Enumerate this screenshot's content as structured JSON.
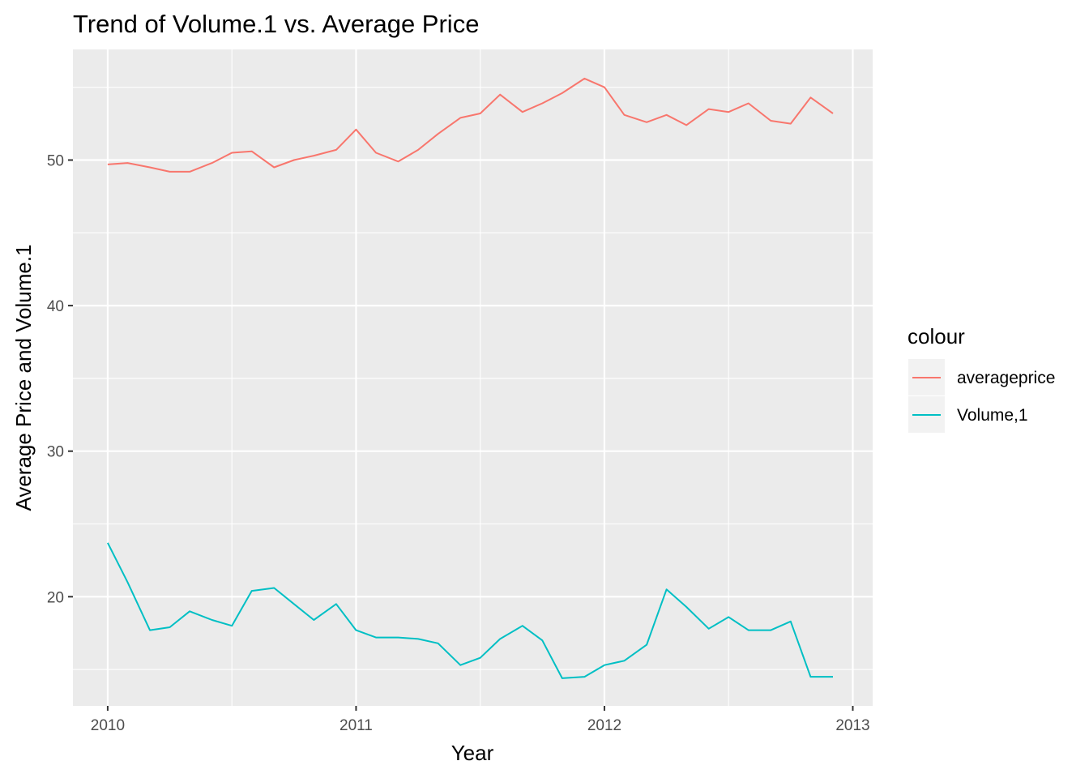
{
  "chart_data": {
    "type": "line",
    "title": "Trend of Volume.1 vs. Average Price",
    "xlabel": "Year",
    "ylabel": "Average Price and Volume.1",
    "xlim": [
      2009.86,
      2013.08
    ],
    "ylim": [
      12.5,
      57.6
    ],
    "x_ticks": [
      2010,
      2011,
      2012,
      2013
    ],
    "x_tick_labels": [
      "2010",
      "2011",
      "2012",
      "2013"
    ],
    "y_ticks": [
      20,
      30,
      40,
      50
    ],
    "y_tick_labels": [
      "20",
      "30",
      "40",
      "50"
    ],
    "grid": true,
    "legend": {
      "title": "colour",
      "position": "right"
    },
    "x": [
      2010.0,
      2010.08,
      2010.17,
      2010.25,
      2010.33,
      2010.42,
      2010.5,
      2010.58,
      2010.67,
      2010.75,
      2010.83,
      2010.92,
      2011.0,
      2011.08,
      2011.17,
      2011.25,
      2011.33,
      2011.42,
      2011.5,
      2011.58,
      2011.67,
      2011.75,
      2011.83,
      2011.92,
      2012.0,
      2012.08,
      2012.17,
      2012.25,
      2012.33,
      2012.42,
      2012.5,
      2012.58,
      2012.67,
      2012.75,
      2012.83,
      2012.92
    ],
    "series": [
      {
        "name": "averageprice",
        "color": "#F8766D",
        "values": [
          49.7,
          49.8,
          49.5,
          49.2,
          49.2,
          49.8,
          50.5,
          50.6,
          49.5,
          50.0,
          50.3,
          50.7,
          52.1,
          50.5,
          49.9,
          50.7,
          51.8,
          52.9,
          53.2,
          54.5,
          53.3,
          53.9,
          54.6,
          55.6,
          55.0,
          53.1,
          52.6,
          53.1,
          52.4,
          53.5,
          53.3,
          53.9,
          52.7,
          52.5,
          54.3,
          53.2
        ]
      },
      {
        "name": "Volume,1",
        "color": "#00BFC4",
        "values": [
          23.7,
          21.0,
          17.7,
          17.9,
          19.0,
          18.4,
          18.0,
          20.4,
          20.6,
          19.5,
          18.4,
          19.5,
          17.7,
          17.2,
          17.2,
          17.1,
          16.8,
          15.3,
          15.8,
          17.1,
          18.0,
          17.0,
          14.4,
          14.5,
          15.3,
          15.6,
          16.7,
          20.5,
          19.3,
          17.8,
          18.6,
          17.7,
          17.7,
          18.3,
          14.5,
          14.5
        ]
      }
    ]
  }
}
